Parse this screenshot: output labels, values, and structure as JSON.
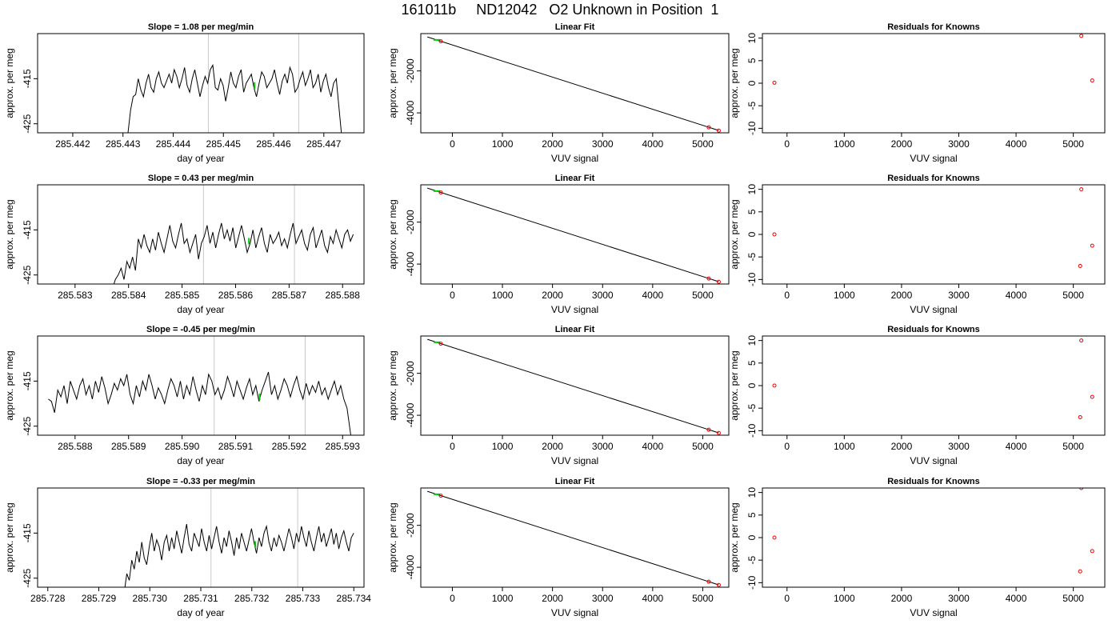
{
  "page": {
    "title": "161011b     ND12042   O2 Unknown in Position  1"
  },
  "chart_data": [
    {
      "type": "line",
      "title": "Slope =  1.08  per meg/min",
      "xlabel": "day of year",
      "ylabel": "approx. per meg",
      "xlim": [
        285.4413,
        285.4478
      ],
      "ylim": [
        -427,
        -405
      ],
      "xticks": [
        "285.442",
        "285.443",
        "285.444",
        "285.445",
        "285.446",
        "285.447"
      ],
      "xtick_values": [
        285.442,
        285.443,
        285.444,
        285.445,
        285.446,
        285.447
      ],
      "yticks": [
        "-415",
        "-425"
      ],
      "ytick_values": [
        -415,
        -425
      ],
      "vlines": [
        285.4447,
        285.4465
      ],
      "series": [
        {
          "color": "#000000",
          "x_start": 285.4431,
          "x_end": 285.4474,
          "values": [
            -427,
            -422,
            -419,
            -418.5,
            -415,
            -417.5,
            -419,
            -416,
            -414,
            -417,
            -418,
            -415,
            -413.5,
            -416,
            -417,
            -415.5,
            -414,
            -416,
            -413,
            -414.5,
            -417,
            -415,
            -412.5,
            -416.5,
            -418,
            -415,
            -413,
            -416,
            -419,
            -416.5,
            -414.5,
            -416,
            -413,
            -412,
            -417,
            -417.5,
            -415,
            -416.5,
            -420,
            -417,
            -413.5,
            -416,
            -417,
            -414.5,
            -413,
            -418,
            -416,
            -415,
            -414,
            -417,
            -419,
            -416,
            -413.5,
            -414.5,
            -417,
            -416,
            -415,
            -413,
            -416,
            -418.5,
            -415.5,
            -414,
            -416,
            -412.5,
            -414,
            -418,
            -417,
            -415,
            -413.5,
            -416.5,
            -415,
            -413,
            -417,
            -416,
            -414,
            -418,
            -415.5,
            -414,
            -417,
            -419,
            -416,
            -415,
            -421,
            -427,
            -431
          ]
        }
      ],
      "marker": {
        "x": 285.44562,
        "y": -416.5,
        "color": "#00cc00"
      }
    },
    {
      "type": "scatter",
      "title": "Linear Fit",
      "xlabel": "VUV signal",
      "ylabel": "approx. per meg",
      "xlim": [
        -630,
        5520
      ],
      "ylim": [
        -4950,
        -220
      ],
      "xticks": [
        "0",
        "1000",
        "2000",
        "3000",
        "4000",
        "5000"
      ],
      "xtick_values": [
        0,
        1000,
        2000,
        3000,
        4000,
        5000
      ],
      "yticks": [
        "-2000",
        "-4000"
      ],
      "ytick_values": [
        -2000,
        -4000
      ],
      "fit_line": [
        [
          -500,
          -378
        ],
        [
          5320,
          -4840
        ]
      ],
      "points": [
        [
          -230,
          -588
        ],
        [
          5120,
          -4690
        ],
        [
          5320,
          -4845
        ]
      ],
      "green_marker": {
        "x": -310,
        "y": -520
      }
    },
    {
      "type": "scatter",
      "title": "Residuals for Knowns",
      "xlabel": "VUV signal",
      "ylabel": "approx. per meg",
      "xlim": [
        -430,
        5550
      ],
      "ylim": [
        -11,
        11
      ],
      "xticks": [
        "0",
        "1000",
        "2000",
        "3000",
        "4000",
        "5000"
      ],
      "xtick_values": [
        0,
        1000,
        2000,
        3000,
        4000,
        5000
      ],
      "yticks": [
        "-10",
        "-5",
        "0",
        "5",
        "10"
      ],
      "ytick_values": [
        -10,
        -5,
        0,
        5,
        10
      ],
      "points": [
        [
          -220,
          0.1
        ],
        [
          5140,
          10.5
        ],
        [
          5330,
          0.6
        ]
      ]
    },
    {
      "type": "line",
      "title": "Slope =  0.43  per meg/min",
      "xlabel": "day of year",
      "ylabel": "approx. per meg",
      "xlim": [
        285.5823,
        285.5884
      ],
      "ylim": [
        -427,
        -405
      ],
      "xticks": [
        "285.583",
        "285.584",
        "285.585",
        "285.586",
        "285.587",
        "285.588"
      ],
      "xtick_values": [
        285.583,
        285.584,
        285.585,
        285.586,
        285.587,
        285.588
      ],
      "yticks": [
        "-415",
        "-425"
      ],
      "ytick_values": [
        -415,
        -425
      ],
      "vlines": [
        285.5854,
        285.5871
      ],
      "series": [
        {
          "color": "#000000",
          "x_start": 285.5837,
          "x_end": 285.5882,
          "values": [
            -428,
            -426,
            -425,
            -423.5,
            -426,
            -422,
            -423.5,
            -421,
            -424,
            -417,
            -419,
            -416,
            -418.5,
            -420,
            -417,
            -419.5,
            -415.5,
            -418,
            -420,
            -417,
            -414,
            -417.5,
            -419,
            -416,
            -413.5,
            -418,
            -417,
            -420,
            -418,
            -416,
            -421.5,
            -418,
            -416.5,
            -414,
            -418,
            -415.5,
            -419,
            -416,
            -413.5,
            -417,
            -415,
            -417.5,
            -414.5,
            -419,
            -416.5,
            -414,
            -417,
            -420,
            -418,
            -415,
            -419,
            -416.5,
            -414.5,
            -418,
            -420,
            -416,
            -418,
            -417,
            -415.5,
            -418.5,
            -417,
            -419,
            -416,
            -413.5,
            -418,
            -416.5,
            -415,
            -418,
            -419.5,
            -416,
            -414.5,
            -419,
            -417,
            -415,
            -418.5,
            -420,
            -416.5,
            -418,
            -415,
            -417,
            -419,
            -416,
            -415,
            -417.5,
            -416
          ]
        }
      ],
      "marker": {
        "x": 285.58625,
        "y": -417.5,
        "color": "#00cc00"
      }
    },
    {
      "type": "scatter",
      "title": "Linear Fit",
      "xlabel": "VUV signal",
      "ylabel": "approx. per meg",
      "xlim": [
        -630,
        5520
      ],
      "ylim": [
        -4950,
        -220
      ],
      "xticks": [
        "0",
        "1000",
        "2000",
        "3000",
        "4000",
        "5000"
      ],
      "xtick_values": [
        0,
        1000,
        2000,
        3000,
        4000,
        5000
      ],
      "yticks": [
        "-2000",
        "-4000"
      ],
      "ytick_values": [
        -2000,
        -4000
      ],
      "fit_line": [
        [
          -500,
          -378
        ],
        [
          5320,
          -4840
        ]
      ],
      "points": [
        [
          -230,
          -588
        ],
        [
          5120,
          -4690
        ],
        [
          5320,
          -4845
        ]
      ],
      "green_marker": {
        "x": -310,
        "y": -520
      }
    },
    {
      "type": "scatter",
      "title": "Residuals for Knowns",
      "xlabel": "VUV signal",
      "ylabel": "approx. per meg",
      "xlim": [
        -430,
        5550
      ],
      "ylim": [
        -11,
        11
      ],
      "xticks": [
        "0",
        "1000",
        "2000",
        "3000",
        "4000",
        "5000"
      ],
      "xtick_values": [
        0,
        1000,
        2000,
        3000,
        4000,
        5000
      ],
      "yticks": [
        "-10",
        "-5",
        "0",
        "5",
        "10"
      ],
      "ytick_values": [
        -10,
        -5,
        0,
        5,
        10
      ],
      "points": [
        [
          -220,
          0.0
        ],
        [
          5140,
          10.0
        ],
        [
          5120,
          -7.0
        ],
        [
          5330,
          -2.5
        ]
      ]
    },
    {
      "type": "line",
      "title": "Slope =  -0.45  per meg/min",
      "xlabel": "day of year",
      "ylabel": "approx. per meg",
      "xlim": [
        285.5873,
        285.5934
      ],
      "ylim": [
        -427,
        -405
      ],
      "xticks": [
        "285.588",
        "285.589",
        "285.590",
        "285.591",
        "285.592",
        "285.593"
      ],
      "xtick_values": [
        285.588,
        285.589,
        285.59,
        285.591,
        285.592,
        285.593
      ],
      "yticks": [
        "-415",
        "-425"
      ],
      "ytick_values": [
        -415,
        -425
      ],
      "vlines": [
        285.5906,
        285.5923
      ],
      "series": [
        {
          "color": "#000000",
          "x_start": 285.5875,
          "x_end": 285.5932,
          "values": [
            -419,
            -419.5,
            -422,
            -417,
            -418.5,
            -416,
            -420,
            -415,
            -417,
            -419,
            -416,
            -414.5,
            -418,
            -416,
            -419,
            -415,
            -417.5,
            -414,
            -416.5,
            -420,
            -418,
            -415.5,
            -417,
            -414.5,
            -416,
            -413.5,
            -418,
            -420,
            -416,
            -418.5,
            -415,
            -417,
            -413.5,
            -416,
            -419,
            -416.5,
            -418,
            -420,
            -417,
            -414.5,
            -416,
            -418.5,
            -415,
            -419,
            -416,
            -418,
            -414,
            -417,
            -419.5,
            -416,
            -418,
            -413.5,
            -415,
            -418,
            -416.5,
            -419,
            -417,
            -414,
            -416,
            -418.5,
            -415,
            -417,
            -419,
            -416.5,
            -414.5,
            -418,
            -416,
            -419.5,
            -417,
            -415,
            -413,
            -418,
            -416,
            -419,
            -417,
            -414.5,
            -416,
            -418.5,
            -416,
            -414,
            -417,
            -419,
            -415.5,
            -418,
            -416,
            -417.5,
            -415,
            -418,
            -416.5,
            -419,
            -417,
            -415,
            -418,
            -416,
            -419,
            -421,
            -426,
            -431
          ]
        }
      ],
      "marker": {
        "x": 285.59145,
        "y": -418.5,
        "color": "#00cc00"
      }
    },
    {
      "type": "scatter",
      "title": "Linear Fit",
      "xlabel": "VUV signal",
      "ylabel": "approx. per meg",
      "xlim": [
        -630,
        5520
      ],
      "ylim": [
        -4950,
        -220
      ],
      "xticks": [
        "0",
        "1000",
        "2000",
        "3000",
        "4000",
        "5000"
      ],
      "xtick_values": [
        0,
        1000,
        2000,
        3000,
        4000,
        5000
      ],
      "yticks": [
        "-2000",
        "-4000"
      ],
      "ytick_values": [
        -2000,
        -4000
      ],
      "fit_line": [
        [
          -500,
          -378
        ],
        [
          5320,
          -4840
        ]
      ],
      "points": [
        [
          -230,
          -588
        ],
        [
          5120,
          -4690
        ],
        [
          5320,
          -4845
        ]
      ],
      "green_marker": {
        "x": -310,
        "y": -520
      }
    },
    {
      "type": "scatter",
      "title": "Residuals for Knowns",
      "xlabel": "VUV signal",
      "ylabel": "approx. per meg",
      "xlim": [
        -430,
        5550
      ],
      "ylim": [
        -11,
        11
      ],
      "xticks": [
        "0",
        "1000",
        "2000",
        "3000",
        "4000",
        "5000"
      ],
      "xtick_values": [
        0,
        1000,
        2000,
        3000,
        4000,
        5000
      ],
      "yticks": [
        "-10",
        "-5",
        "0",
        "5",
        "10"
      ],
      "ytick_values": [
        -10,
        -5,
        0,
        5,
        10
      ],
      "points": [
        [
          -220,
          0.0
        ],
        [
          5140,
          10.0
        ],
        [
          5120,
          -7.0
        ],
        [
          5330,
          -2.5
        ]
      ]
    },
    {
      "type": "line",
      "title": "Slope =  -0.33  per meg/min",
      "xlabel": "day of year",
      "ylabel": "approx. per meg",
      "xlim": [
        285.7278,
        285.7342
      ],
      "ylim": [
        -427,
        -405
      ],
      "xticks": [
        "285.728",
        "285.729",
        "285.730",
        "285.731",
        "285.732",
        "285.733",
        "285.734"
      ],
      "xtick_values": [
        285.728,
        285.729,
        285.73,
        285.731,
        285.732,
        285.733,
        285.734
      ],
      "yticks": [
        "-415",
        "-425"
      ],
      "ytick_values": [
        -415,
        -425
      ],
      "vlines": [
        285.7312,
        285.7329
      ],
      "series": [
        {
          "color": "#000000",
          "x_start": 285.7295,
          "x_end": 285.734,
          "values": [
            -428,
            -424,
            -425.5,
            -421,
            -423,
            -419,
            -421.5,
            -417,
            -420.5,
            -422,
            -418,
            -415,
            -419,
            -416.5,
            -418,
            -421,
            -417,
            -415.5,
            -419,
            -416,
            -418.5,
            -414.5,
            -417,
            -419.5,
            -416,
            -413,
            -417.5,
            -419,
            -415,
            -416.5,
            -418,
            -414,
            -417,
            -419,
            -415.5,
            -418.5,
            -416,
            -413.5,
            -417,
            -419.5,
            -416,
            -418,
            -414.5,
            -417,
            -420,
            -416,
            -418.5,
            -415,
            -417,
            -419,
            -416.5,
            -414,
            -417,
            -419.5,
            -416,
            -418,
            -415,
            -413.5,
            -417,
            -419,
            -416,
            -418,
            -415.5,
            -417,
            -419,
            -416.5,
            -414,
            -416,
            -418.5,
            -415,
            -417,
            -413.5,
            -416,
            -418,
            -414.5,
            -417,
            -419,
            -416,
            -413.5,
            -417,
            -415,
            -418,
            -416,
            -414,
            -417.5,
            -415,
            -418.5,
            -416,
            -414.5,
            -417,
            -419,
            -416,
            -415
          ]
        }
      ],
      "marker": {
        "x": 285.73207,
        "y": -417.5,
        "color": "#00cc00"
      }
    },
    {
      "type": "scatter",
      "title": "Linear Fit",
      "xlabel": "VUV signal",
      "ylabel": "approx. per meg",
      "xlim": [
        -630,
        5520
      ],
      "ylim": [
        -4950,
        -220
      ],
      "xticks": [
        "0",
        "1000",
        "2000",
        "3000",
        "4000",
        "5000"
      ],
      "xtick_values": [
        0,
        1000,
        2000,
        3000,
        4000,
        5000
      ],
      "yticks": [
        "-2000",
        "-4000"
      ],
      "ytick_values": [
        -2000,
        -4000
      ],
      "fit_line": [
        [
          -500,
          -378
        ],
        [
          5320,
          -4840
        ]
      ],
      "points": [
        [
          -230,
          -588
        ],
        [
          5120,
          -4690
        ],
        [
          5320,
          -4845
        ]
      ],
      "green_marker": {
        "x": -310,
        "y": -520
      }
    },
    {
      "type": "scatter",
      "title": "Residuals for Knowns",
      "xlabel": "VUV signal",
      "ylabel": "approx. per meg",
      "xlim": [
        -430,
        5550
      ],
      "ylim": [
        -11,
        11
      ],
      "xticks": [
        "0",
        "1000",
        "2000",
        "3000",
        "4000",
        "5000"
      ],
      "xtick_values": [
        0,
        1000,
        2000,
        3000,
        4000,
        5000
      ],
      "yticks": [
        "-10",
        "-5",
        "0",
        "5",
        "10"
      ],
      "ytick_values": [
        -10,
        -5,
        0,
        5,
        10
      ],
      "points": [
        [
          -220,
          0.0
        ],
        [
          5140,
          11.0
        ],
        [
          5120,
          -7.5
        ],
        [
          5330,
          -3.0
        ]
      ]
    }
  ]
}
